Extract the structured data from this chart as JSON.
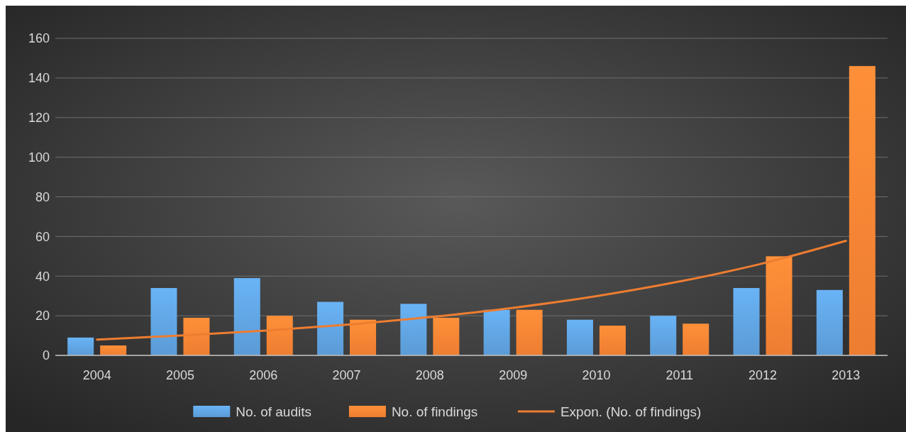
{
  "chart_data": {
    "type": "bar",
    "categories": [
      "2004",
      "2005",
      "2006",
      "2007",
      "2008",
      "2009",
      "2010",
      "2011",
      "2012",
      "2013"
    ],
    "series": [
      {
        "name": "No. of audits",
        "color": "#5b9bd5",
        "values": [
          9,
          34,
          39,
          27,
          26,
          23,
          18,
          20,
          34,
          33
        ]
      },
      {
        "name": "No. of findings",
        "color": "#ed7d31",
        "values": [
          5,
          19,
          20,
          18,
          19,
          23,
          15,
          16,
          50,
          146
        ]
      },
      {
        "name": "Expon. (No. of findings)",
        "type": "line",
        "color": "#ed7d31",
        "values": [
          8.0,
          10.0,
          12.4,
          15.5,
          19.3,
          24.0,
          29.9,
          37.3,
          46.4,
          57.8
        ]
      }
    ],
    "ylim": [
      0,
      160
    ],
    "yticks": [
      0,
      20,
      40,
      60,
      80,
      100,
      120,
      140,
      160
    ],
    "grid": "y",
    "legend": "bottom",
    "marker": "none"
  }
}
